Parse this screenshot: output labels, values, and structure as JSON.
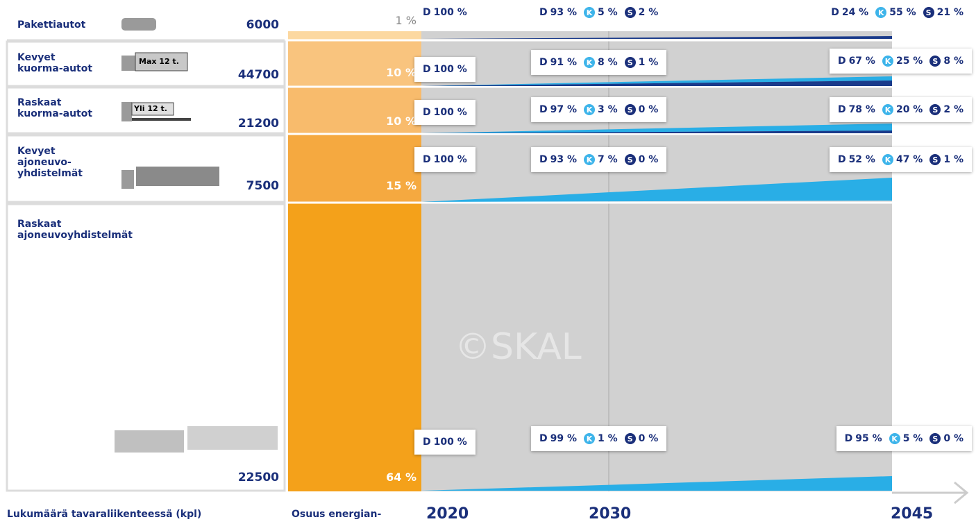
{
  "header": {
    "count_title": "Lukumäärä tavaraliikenteessä (kpl)",
    "share_title": "Osuus energian-",
    "years": [
      "2020",
      "2030",
      "2045"
    ]
  },
  "watermark": "©SKAL",
  "rows": [
    {
      "name": [
        "Pakettiautot"
      ],
      "count": "6000",
      "share": "1 %",
      "mix_2020": [
        {
          "fuel": "D",
          "share": "100 %"
        }
      ],
      "mix_2030": [
        {
          "fuel": "D",
          "share": "93 %"
        },
        {
          "fuel": "K",
          "share": "5 %"
        },
        {
          "fuel": "S",
          "share": "2 %"
        }
      ],
      "mix_2045": [
        {
          "fuel": "D",
          "share": "24 %"
        },
        {
          "fuel": "K",
          "share": "55 %"
        },
        {
          "fuel": "S",
          "share": "21 %"
        }
      ]
    },
    {
      "name": [
        "Kevyet",
        "kuorma-autot"
      ],
      "icon_text": "Max 12 t.",
      "count": "44700",
      "share": "10 %",
      "mix_2020": [
        {
          "fuel": "D",
          "share": "100 %"
        }
      ],
      "mix_2030": [
        {
          "fuel": "D",
          "share": "91 %"
        },
        {
          "fuel": "K",
          "share": "8 %"
        },
        {
          "fuel": "S",
          "share": "1 %"
        }
      ],
      "mix_2045": [
        {
          "fuel": "D",
          "share": "67 %"
        },
        {
          "fuel": "K",
          "share": "25 %"
        },
        {
          "fuel": "S",
          "share": "8 %"
        }
      ]
    },
    {
      "name": [
        "Raskaat",
        "kuorma-autot"
      ],
      "icon_text": "Yli 12 t.",
      "count": "21200",
      "share": "10 %",
      "mix_2020": [
        {
          "fuel": "D",
          "share": "100 %"
        }
      ],
      "mix_2030": [
        {
          "fuel": "D",
          "share": "97 %"
        },
        {
          "fuel": "K",
          "share": "3 %"
        },
        {
          "fuel": "S",
          "share": "0 %"
        }
      ],
      "mix_2045": [
        {
          "fuel": "D",
          "share": "78 %"
        },
        {
          "fuel": "K",
          "share": "20 %"
        },
        {
          "fuel": "S",
          "share": "2 %"
        }
      ]
    },
    {
      "name": [
        "Kevyet",
        "ajoneuvo-",
        "yhdistelmät"
      ],
      "count": "7500",
      "share": "15 %",
      "mix_2020": [
        {
          "fuel": "D",
          "share": "100 %"
        }
      ],
      "mix_2030": [
        {
          "fuel": "D",
          "share": "93 %"
        },
        {
          "fuel": "K",
          "share": "7 %"
        },
        {
          "fuel": "S",
          "share": "0 %"
        }
      ],
      "mix_2045": [
        {
          "fuel": "D",
          "share": "52 %"
        },
        {
          "fuel": "K",
          "share": "47 %"
        },
        {
          "fuel": "S",
          "share": "1 %"
        }
      ]
    },
    {
      "name": [
        "Raskaat",
        "ajoneuvoyhdistelmät"
      ],
      "count": "22500",
      "share": "64 %",
      "mix_2020": [
        {
          "fuel": "D",
          "share": "100 %"
        }
      ],
      "mix_2030": [
        {
          "fuel": "D",
          "share": "99 %"
        },
        {
          "fuel": "K",
          "share": "1 %"
        },
        {
          "fuel": "S",
          "share": "0 %"
        }
      ],
      "mix_2045": [
        {
          "fuel": "D",
          "share": "95 %"
        },
        {
          "fuel": "K",
          "share": "5 %"
        },
        {
          "fuel": "S",
          "share": "0 %"
        }
      ]
    }
  ]
}
